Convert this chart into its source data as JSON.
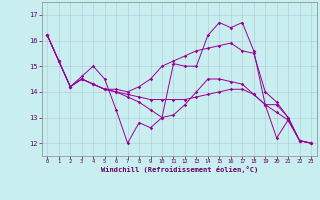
{
  "xlabel": "Windchill (Refroidissement éolien,°C)",
  "bg_color": "#c8eef0",
  "line_color": "#990099",
  "grid_color": "#b0d0d8",
  "xlim": [
    -0.5,
    23.5
  ],
  "ylim": [
    11.5,
    17.5
  ],
  "yticks": [
    12,
    13,
    14,
    15,
    16,
    17
  ],
  "xticks": [
    0,
    1,
    2,
    3,
    4,
    5,
    6,
    7,
    8,
    9,
    10,
    11,
    12,
    13,
    14,
    15,
    16,
    17,
    18,
    19,
    20,
    21,
    22,
    23
  ],
  "series": [
    [
      16.2,
      15.2,
      14.2,
      14.6,
      15.0,
      14.5,
      13.3,
      12.0,
      12.8,
      12.6,
      13.0,
      15.1,
      15.0,
      15.0,
      16.2,
      16.7,
      16.5,
      16.7,
      15.6,
      13.5,
      12.2,
      12.9,
      12.1,
      12.0
    ],
    [
      16.2,
      15.2,
      14.2,
      14.5,
      14.3,
      14.1,
      14.1,
      14.0,
      14.2,
      14.5,
      15.0,
      15.2,
      15.4,
      15.6,
      15.7,
      15.8,
      15.9,
      15.6,
      15.5,
      14.0,
      13.6,
      13.0,
      12.1,
      12.0
    ],
    [
      16.2,
      15.2,
      14.2,
      14.5,
      14.3,
      14.1,
      14.0,
      13.8,
      13.6,
      13.3,
      13.0,
      13.1,
      13.5,
      14.0,
      14.5,
      14.5,
      14.4,
      14.3,
      13.9,
      13.5,
      13.2,
      12.9,
      12.1,
      12.0
    ],
    [
      16.2,
      15.2,
      14.2,
      14.5,
      14.3,
      14.1,
      14.0,
      13.9,
      13.8,
      13.7,
      13.7,
      13.7,
      13.7,
      13.8,
      13.9,
      14.0,
      14.1,
      14.1,
      13.9,
      13.5,
      13.5,
      13.0,
      12.1,
      12.0
    ]
  ]
}
